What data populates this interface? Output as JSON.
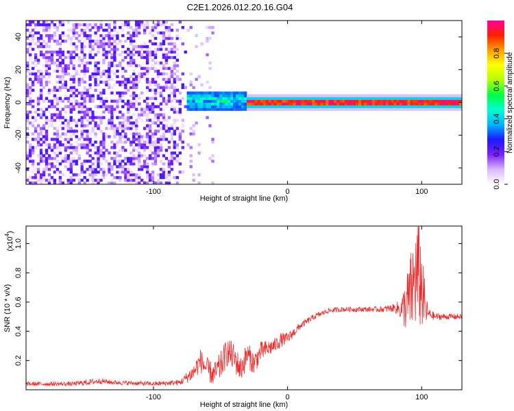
{
  "page": {
    "title": "C2E1.2026.012.20.16.G04"
  },
  "chart_data": [
    {
      "type": "heatmap",
      "title": "C2E1.2026.012.20.16.G04",
      "xlabel": "Height of straight line (km)",
      "ylabel": "Frequency (Hz)",
      "xlim": [
        -195,
        130
      ],
      "ylim": [
        -50,
        50
      ],
      "xticks": [
        -100,
        0,
        100
      ],
      "yticks": [
        -40,
        -20,
        0,
        20,
        40
      ],
      "colorbar": {
        "label": "Normalized spectral amplitude",
        "range": [
          0,
          1
        ],
        "ticks": [
          0.0,
          0.2,
          0.4,
          0.6,
          0.8
        ],
        "colors": [
          "#ffffff",
          "#d9b8ff",
          "#7a1fff",
          "#1a1aff",
          "#00b4ff",
          "#00ffd0",
          "#00ff40",
          "#b4ff00",
          "#ffff00",
          "#ffa000",
          "#ff2000",
          "#ff00a0"
        ]
      },
      "regions": [
        {
          "name": "noise",
          "x": [
            -195,
            -75
          ],
          "amplitude": [
            0.0,
            0.25
          ]
        },
        {
          "name": "transition",
          "x": [
            -75,
            -30
          ],
          "center_freq": 1,
          "width": 6,
          "amplitude": [
            0.3,
            0.55
          ]
        },
        {
          "name": "signal",
          "x": [
            -30,
            130
          ],
          "center_freq": 0,
          "width": 3,
          "amplitude": [
            0.85,
            1.0
          ]
        }
      ]
    },
    {
      "type": "line",
      "title": "",
      "xlabel": "Height of straight line (km)",
      "ylabel": "SNR (10 * v/v)",
      "yscale_label": "(x10",
      "yscale_exp": "4",
      "xlim": [
        -195,
        130
      ],
      "ylim": [
        0,
        1.12
      ],
      "xticks": [
        -100,
        0,
        100
      ],
      "yticks": [
        0.2,
        0.4,
        0.6,
        0.8,
        1.0
      ],
      "line_color": "#ee2a2a",
      "x": [
        -195,
        -160,
        -150,
        -140,
        -130,
        -100,
        -80,
        -70,
        -65,
        -60,
        -55,
        -50,
        -45,
        -40,
        -35,
        -30,
        -25,
        -20,
        -15,
        -10,
        -5,
        0,
        10,
        20,
        30,
        40,
        50,
        60,
        70,
        80,
        85,
        90,
        95,
        98,
        100,
        103,
        105,
        110,
        120,
        130
      ],
      "y": [
        0.04,
        0.04,
        0.05,
        0.06,
        0.05,
        0.04,
        0.05,
        0.12,
        0.2,
        0.14,
        0.1,
        0.16,
        0.26,
        0.22,
        0.14,
        0.24,
        0.18,
        0.26,
        0.28,
        0.3,
        0.34,
        0.35,
        0.44,
        0.5,
        0.54,
        0.55,
        0.55,
        0.55,
        0.55,
        0.56,
        0.55,
        0.6,
        0.75,
        0.8,
        0.7,
        0.55,
        0.52,
        0.5,
        0.5,
        0.5
      ],
      "noise": [
        0.015,
        0.015,
        0.02,
        0.02,
        0.015,
        0.015,
        0.02,
        0.06,
        0.08,
        0.08,
        0.08,
        0.1,
        0.1,
        0.1,
        0.09,
        0.09,
        0.08,
        0.07,
        0.06,
        0.05,
        0.05,
        0.04,
        0.025,
        0.02,
        0.018,
        0.018,
        0.018,
        0.018,
        0.02,
        0.03,
        0.08,
        0.25,
        0.35,
        0.4,
        0.3,
        0.12,
        0.04,
        0.025,
        0.02,
        0.02
      ]
    }
  ]
}
